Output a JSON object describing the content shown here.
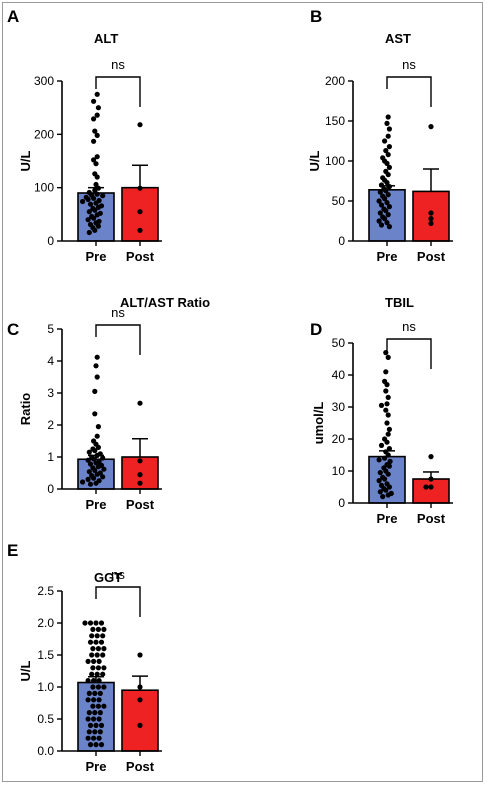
{
  "chart_data": [
    {
      "panel": "A",
      "type": "bar",
      "title": "ALT",
      "ylabel": "U/L",
      "categories": [
        "Pre",
        "Post"
      ],
      "ylim": [
        0,
        300
      ],
      "yticks": [
        "0",
        "100",
        "200",
        "300"
      ],
      "colors": [
        "#6b83c9",
        "#ee2222"
      ],
      "series": [
        {
          "values": [
            90,
            100
          ],
          "sem": [
            10,
            42
          ]
        }
      ],
      "points": {
        "Pre": [
          275,
          262,
          250,
          236,
          229,
          206,
          198,
          187,
          158,
          152,
          145,
          126,
          120,
          106,
          99,
          95,
          91,
          88,
          86,
          85,
          82,
          80,
          78,
          76,
          74,
          71,
          69,
          66,
          63,
          61,
          58,
          55,
          52,
          49,
          46,
          43,
          40,
          37,
          34,
          31,
          28,
          25,
          20,
          16
        ],
        "Post": [
          218,
          99,
          55,
          20
        ]
      },
      "annotation": "ns"
    },
    {
      "panel": "B",
      "type": "bar",
      "title": "AST",
      "ylabel": "U/L",
      "categories": [
        "Pre",
        "Post"
      ],
      "ylim": [
        0,
        200
      ],
      "yticks": [
        "0",
        "50",
        "100",
        "150",
        "200"
      ],
      "colors": [
        "#6b83c9",
        "#ee2222"
      ],
      "series": [
        {
          "values": [
            64,
            62
          ],
          "sem": [
            5,
            28
          ]
        }
      ],
      "points": {
        "Pre": [
          155,
          147,
          140,
          131,
          125,
          118,
          113,
          108,
          104,
          100,
          97,
          92,
          87,
          83,
          79,
          76,
          73,
          70,
          68,
          65,
          63,
          61,
          58,
          56,
          53,
          50,
          48,
          45,
          43,
          40,
          38,
          35,
          33,
          30,
          28,
          25,
          23,
          20,
          18
        ],
        "Post": [
          143,
          35,
          28,
          22
        ]
      },
      "annotation": "ns"
    },
    {
      "panel": "C",
      "type": "bar",
      "title": "ALT/AST Ratio",
      "ylabel": "Ratio",
      "categories": [
        "Pre",
        "Post"
      ],
      "ylim": [
        0,
        5
      ],
      "yticks": [
        "0",
        "1",
        "2",
        "3",
        "4",
        "5"
      ],
      "colors": [
        "#6b83c9",
        "#ee2222"
      ],
      "series": [
        {
          "values": [
            0.93,
            1.0
          ],
          "sem": [
            0.12,
            0.57
          ]
        }
      ],
      "points": {
        "Pre": [
          4.12,
          3.85,
          3.5,
          3.05,
          2.35,
          1.95,
          1.65,
          1.5,
          1.4,
          1.3,
          1.25,
          1.2,
          1.15,
          1.1,
          1.05,
          1.0,
          0.97,
          0.94,
          0.9,
          0.86,
          0.82,
          0.78,
          0.74,
          0.7,
          0.66,
          0.62,
          0.58,
          0.54,
          0.5,
          0.46,
          0.42,
          0.38,
          0.34,
          0.3,
          0.26,
          0.22,
          0.18,
          0.15
        ],
        "Post": [
          2.68,
          0.88,
          0.45,
          0.18
        ]
      },
      "annotation": "ns"
    },
    {
      "panel": "D",
      "type": "bar",
      "title": "TBIL",
      "ylabel": "umol/L",
      "categories": [
        "Pre",
        "Post"
      ],
      "ylim": [
        0,
        50
      ],
      "yticks": [
        "0",
        "10",
        "20",
        "30",
        "40",
        "50"
      ],
      "colors": [
        "#6b83c9",
        "#ee2222"
      ],
      "series": [
        {
          "values": [
            14.5,
            7.5
          ],
          "sem": [
            1.8,
            2.2
          ]
        }
      ],
      "points": {
        "Pre": [
          47,
          45.5,
          41,
          38,
          37,
          35,
          33,
          31,
          30.5,
          29,
          27.5,
          25,
          23,
          21.5,
          20,
          19,
          18,
          17,
          16,
          15,
          14,
          13.5,
          13,
          12,
          11.5,
          11,
          10,
          9.5,
          9,
          8,
          7.5,
          7,
          6,
          5.5,
          5,
          4.5,
          4,
          3.5,
          3,
          2.5,
          2
        ],
        "Post": [
          14.5,
          7.5,
          5,
          5
        ]
      },
      "annotation": "ns"
    },
    {
      "panel": "E",
      "type": "bar",
      "title": "GGT",
      "ylabel": "U/L",
      "categories": [
        "Pre",
        "Post"
      ],
      "ylim": [
        0,
        2.5
      ],
      "yticks": [
        "0.0",
        "0.5",
        "1.0",
        "1.5",
        "2.0",
        "2.5"
      ],
      "colors": [
        "#6b83c9",
        "#ee2222"
      ],
      "series": [
        {
          "values": [
            1.07,
            0.95
          ],
          "sem": [
            0.09,
            0.22
          ]
        }
      ],
      "points": {
        "Pre": [
          2.0,
          2.0,
          2.0,
          2.0,
          1.9,
          1.9,
          1.9,
          1.8,
          1.8,
          1.8,
          1.7,
          1.7,
          1.7,
          1.6,
          1.6,
          1.6,
          1.5,
          1.5,
          1.5,
          1.4,
          1.4,
          1.4,
          1.3,
          1.3,
          1.3,
          1.2,
          1.2,
          1.2,
          1.1,
          1.1,
          1.1,
          1.0,
          1.0,
          1.0,
          0.9,
          0.9,
          0.9,
          0.8,
          0.8,
          0.8,
          0.7,
          0.7,
          0.7,
          0.6,
          0.6,
          0.6,
          0.5,
          0.5,
          0.5,
          0.4,
          0.4,
          0.4,
          0.3,
          0.3,
          0.3,
          0.2,
          0.2,
          0.2,
          0.1,
          0.1,
          0.1
        ],
        "Post": [
          1.5,
          1.0,
          0.8,
          0.4
        ]
      },
      "annotation": "ns"
    }
  ]
}
